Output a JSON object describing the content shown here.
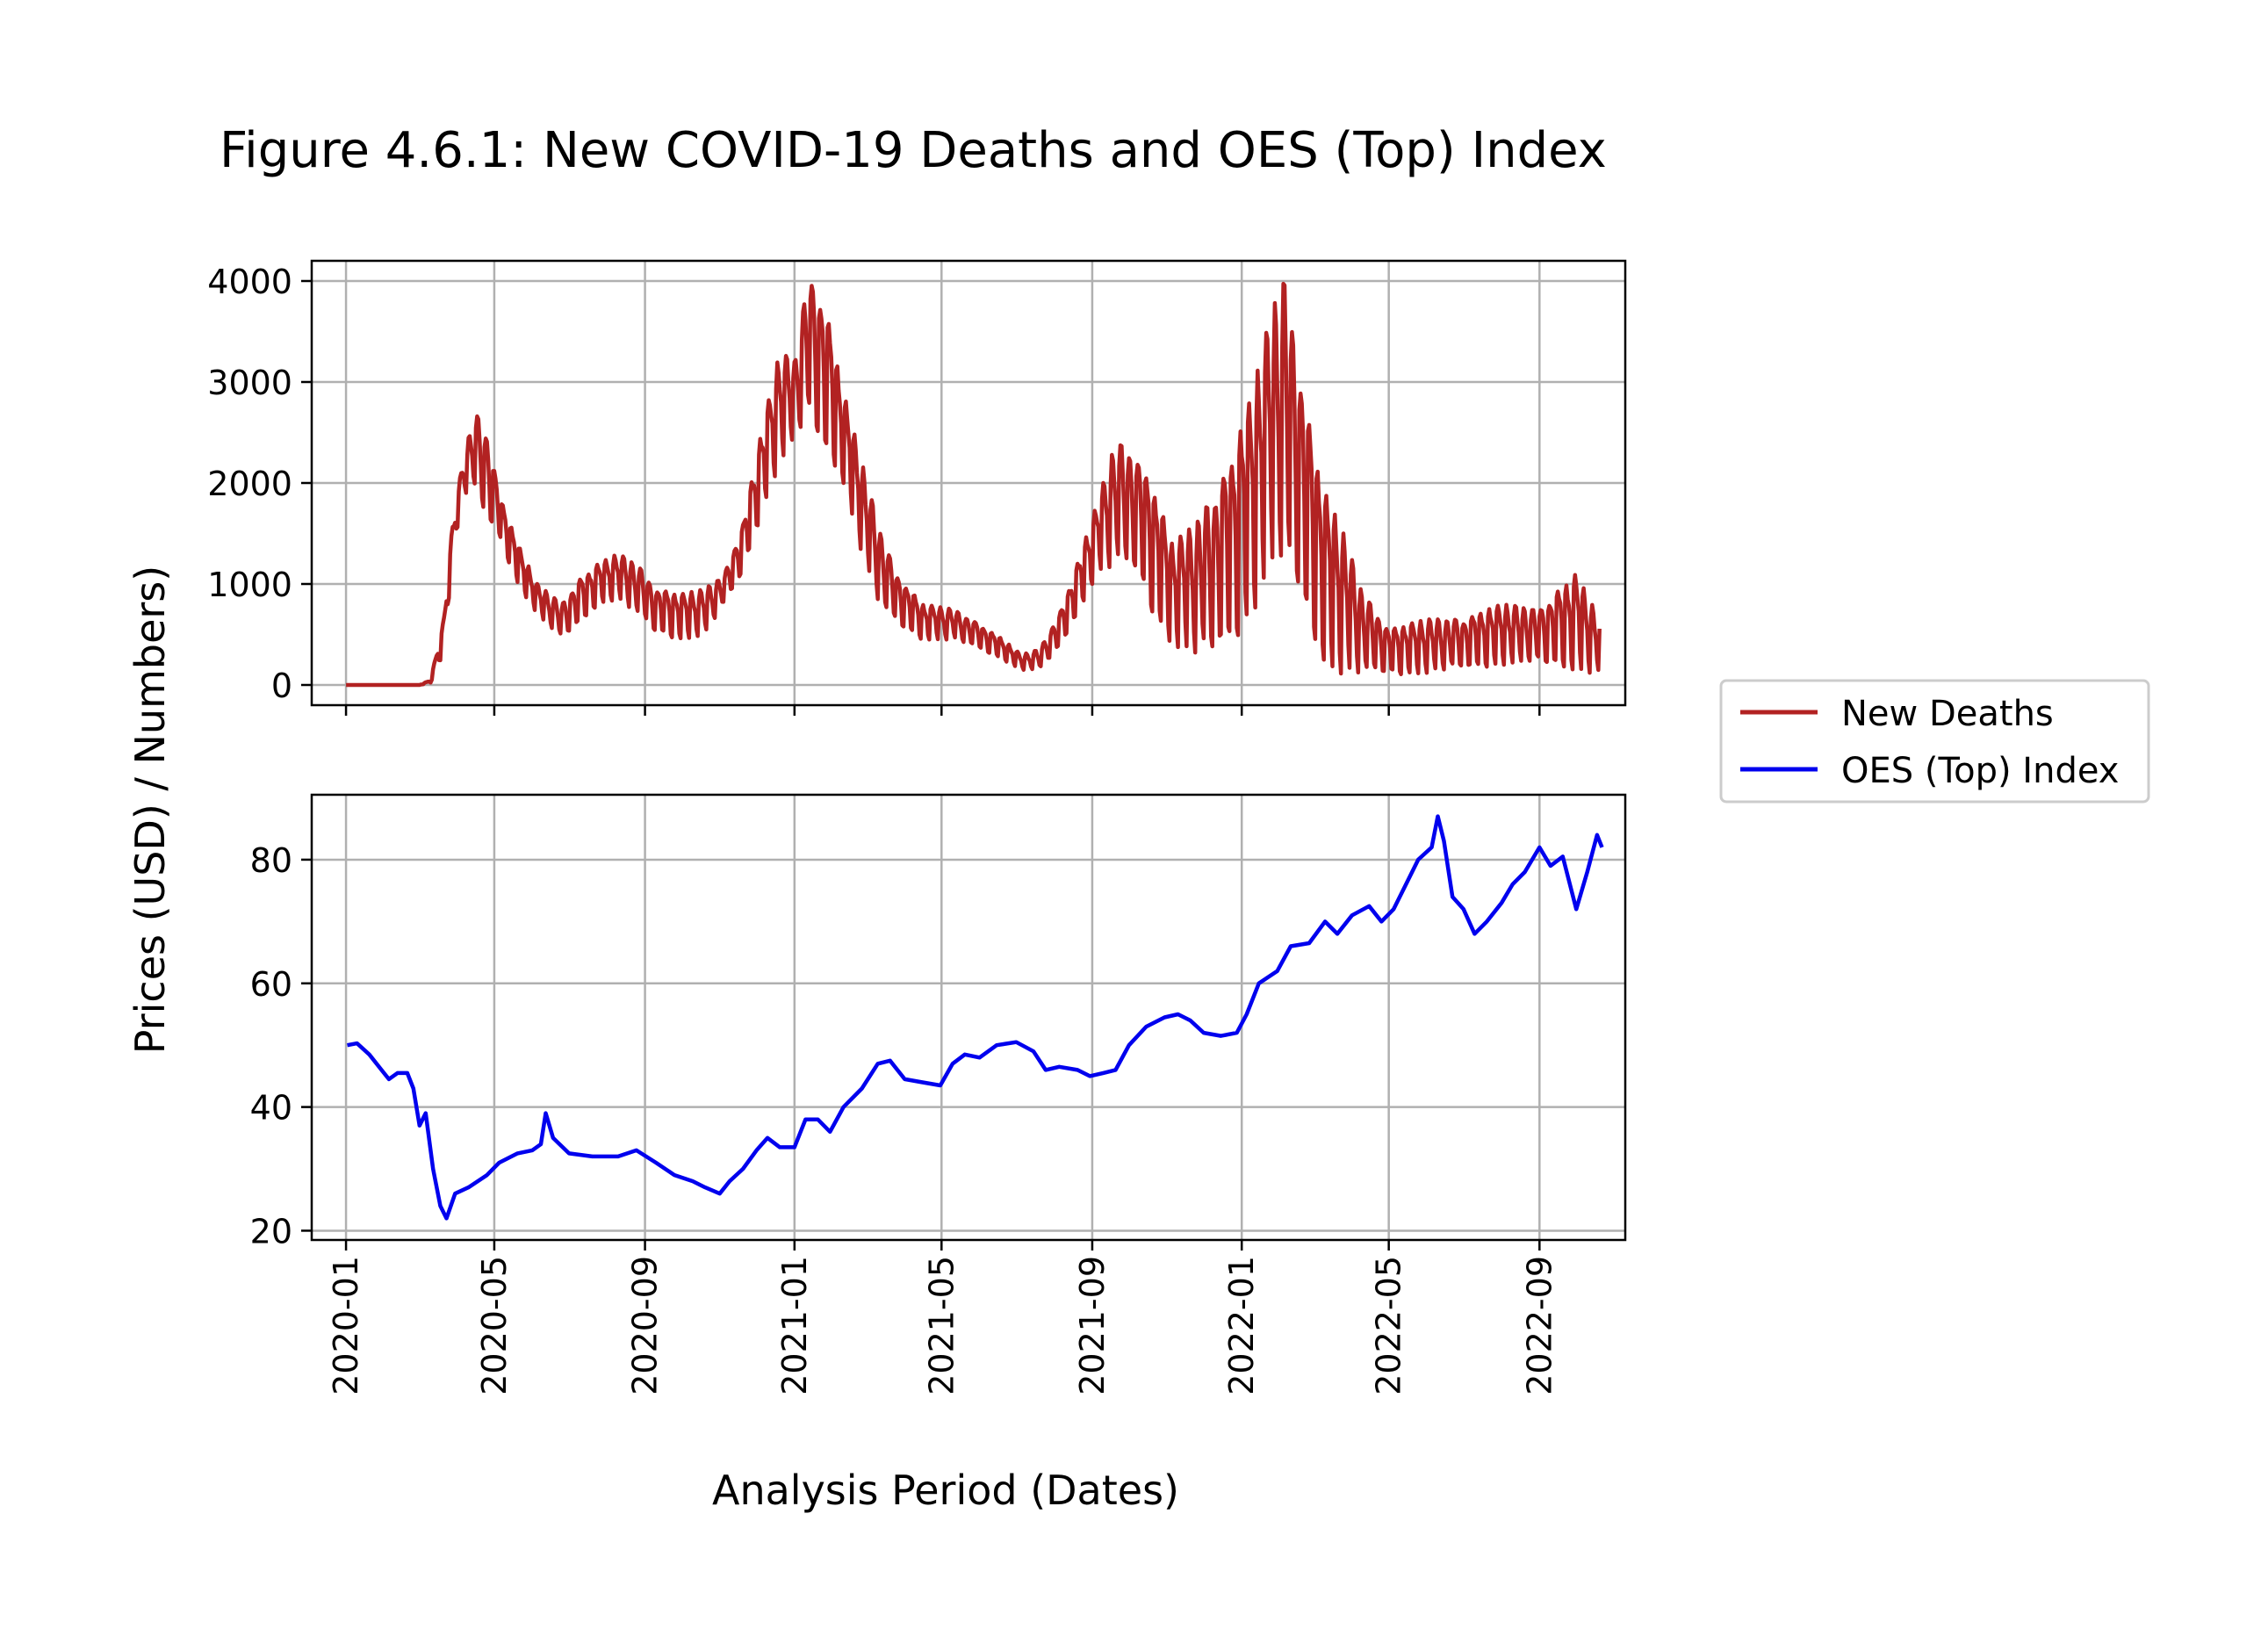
{
  "chart_data": {
    "type": "line",
    "title": "Figure 4.6.1: New COVID-19 Deaths and OES (Top) Index",
    "xlabel": "Analysis Period (Dates)",
    "ylabel": "Prices (USD) / Numbers)",
    "x_ticks": [
      "2020-01",
      "2020-05",
      "2020-09",
      "2021-01",
      "2021-05",
      "2021-09",
      "2022-01",
      "2022-05",
      "2022-09"
    ],
    "x_range": [
      "2019-12-04",
      "2022-11-10"
    ],
    "grid": true,
    "legend_position": "right",
    "legend": [
      "New Deaths",
      "OES (Top) Index"
    ],
    "panels": [
      {
        "name": "New Deaths",
        "color": "#b22222",
        "ylim": [
          -200,
          4200
        ],
        "y_ticks": [
          0,
          1000,
          2000,
          3000,
          4000
        ],
        "series_start": "2020-01-01",
        "series_end": "2022-10-20",
        "weekly_oscillation": true,
        "envelope": [
          [
            "2020-01-01",
            0,
            0
          ],
          [
            "2020-03-01",
            0,
            0
          ],
          [
            "2020-03-10",
            20,
            50
          ],
          [
            "2020-03-20",
            300,
            600
          ],
          [
            "2020-03-28",
            1200,
            1600
          ],
          [
            "2020-04-05",
            1900,
            2200
          ],
          [
            "2020-04-15",
            1900,
            2700
          ],
          [
            "2020-04-25",
            1600,
            2500
          ],
          [
            "2020-05-05",
            1450,
            1900
          ],
          [
            "2020-05-20",
            1000,
            1400
          ],
          [
            "2020-06-05",
            700,
            1000
          ],
          [
            "2020-06-25",
            450,
            800
          ],
          [
            "2020-07-10",
            600,
            1050
          ],
          [
            "2020-07-25",
            800,
            1200
          ],
          [
            "2020-08-10",
            850,
            1300
          ],
          [
            "2020-08-25",
            700,
            1200
          ],
          [
            "2020-09-10",
            500,
            950
          ],
          [
            "2020-10-01",
            450,
            900
          ],
          [
            "2020-10-20",
            500,
            950
          ],
          [
            "2020-11-05",
            800,
            1100
          ],
          [
            "2020-11-20",
            1100,
            1600
          ],
          [
            "2020-12-05",
            1700,
            2500
          ],
          [
            "2020-12-20",
            2200,
            3300
          ],
          [
            "2021-01-01",
            2400,
            3200
          ],
          [
            "2021-01-12",
            2600,
            4050
          ],
          [
            "2021-01-25",
            2300,
            3800
          ],
          [
            "2021-02-10",
            2000,
            2900
          ],
          [
            "2021-02-25",
            1300,
            2200
          ],
          [
            "2021-03-10",
            800,
            1600
          ],
          [
            "2021-03-25",
            600,
            1100
          ],
          [
            "2021-04-15",
            450,
            800
          ],
          [
            "2021-05-10",
            450,
            750
          ],
          [
            "2021-06-01",
            350,
            600
          ],
          [
            "2021-06-20",
            250,
            450
          ],
          [
            "2021-07-05",
            150,
            300
          ],
          [
            "2021-07-20",
            150,
            350
          ],
          [
            "2021-08-05",
            350,
            700
          ],
          [
            "2021-08-20",
            700,
            1200
          ],
          [
            "2021-09-05",
            1100,
            1800
          ],
          [
            "2021-09-20",
            1200,
            2400
          ],
          [
            "2021-10-05",
            1100,
            2300
          ],
          [
            "2021-10-20",
            700,
            2000
          ],
          [
            "2021-11-05",
            400,
            1400
          ],
          [
            "2021-11-25",
            300,
            1600
          ],
          [
            "2021-12-10",
            250,
            1900
          ],
          [
            "2021-12-25",
            400,
            2300
          ],
          [
            "2022-01-10",
            700,
            2900
          ],
          [
            "2022-01-25",
            1200,
            3700
          ],
          [
            "2022-02-05",
            1100,
            4000
          ],
          [
            "2022-02-15",
            900,
            3300
          ],
          [
            "2022-02-25",
            500,
            2600
          ],
          [
            "2022-03-10",
            200,
            1900
          ],
          [
            "2022-03-25",
            100,
            1500
          ],
          [
            "2022-04-10",
            100,
            900
          ],
          [
            "2022-05-01",
            100,
            550
          ],
          [
            "2022-06-01",
            120,
            650
          ],
          [
            "2022-07-01",
            150,
            650
          ],
          [
            "2022-08-01",
            200,
            800
          ],
          [
            "2022-09-01",
            200,
            750
          ],
          [
            "2022-10-01",
            150,
            1100
          ],
          [
            "2022-10-20",
            100,
            650
          ]
        ]
      },
      {
        "name": "OES (Top) Index",
        "color": "#0000ee",
        "ylim": [
          18.5,
          90.5
        ],
        "y_ticks": [
          20,
          40,
          60,
          80
        ],
        "points": [
          [
            "2020-01-02",
            50
          ],
          [
            "2020-01-10",
            50.3
          ],
          [
            "2020-01-20",
            48.5
          ],
          [
            "2020-01-30",
            46
          ],
          [
            "2020-02-05",
            44.5
          ],
          [
            "2020-02-12",
            45.5
          ],
          [
            "2020-02-20",
            45.5
          ],
          [
            "2020-02-25",
            43
          ],
          [
            "2020-03-01",
            37
          ],
          [
            "2020-03-06",
            39
          ],
          [
            "2020-03-12",
            30
          ],
          [
            "2020-03-18",
            24
          ],
          [
            "2020-03-23",
            22
          ],
          [
            "2020-03-30",
            26
          ],
          [
            "2020-04-10",
            27
          ],
          [
            "2020-04-25",
            29
          ],
          [
            "2020-05-05",
            31
          ],
          [
            "2020-05-20",
            32.5
          ],
          [
            "2020-06-01",
            33
          ],
          [
            "2020-06-08",
            34
          ],
          [
            "2020-06-12",
            39
          ],
          [
            "2020-06-18",
            35
          ],
          [
            "2020-07-01",
            32.5
          ],
          [
            "2020-07-20",
            32
          ],
          [
            "2020-08-10",
            32
          ],
          [
            "2020-08-25",
            33
          ],
          [
            "2020-09-10",
            31
          ],
          [
            "2020-09-25",
            29
          ],
          [
            "2020-10-10",
            28
          ],
          [
            "2020-10-20",
            27
          ],
          [
            "2020-11-01",
            26
          ],
          [
            "2020-11-09",
            28
          ],
          [
            "2020-11-20",
            30
          ],
          [
            "2020-12-01",
            33
          ],
          [
            "2020-12-10",
            35
          ],
          [
            "2020-12-20",
            33.5
          ],
          [
            "2021-01-01",
            33.5
          ],
          [
            "2021-01-10",
            38
          ],
          [
            "2021-01-20",
            38
          ],
          [
            "2021-01-30",
            36
          ],
          [
            "2021-02-10",
            40
          ],
          [
            "2021-02-25",
            43
          ],
          [
            "2021-03-10",
            47
          ],
          [
            "2021-03-20",
            47.5
          ],
          [
            "2021-04-01",
            44.5
          ],
          [
            "2021-04-15",
            44
          ],
          [
            "2021-04-30",
            43.5
          ],
          [
            "2021-05-10",
            47
          ],
          [
            "2021-05-20",
            48.5
          ],
          [
            "2021-06-01",
            48
          ],
          [
            "2021-06-15",
            50
          ],
          [
            "2021-07-01",
            50.5
          ],
          [
            "2021-07-15",
            49
          ],
          [
            "2021-07-25",
            46
          ],
          [
            "2021-08-05",
            46.5
          ],
          [
            "2021-08-20",
            46
          ],
          [
            "2021-08-30",
            45
          ],
          [
            "2021-09-10",
            45.5
          ],
          [
            "2021-09-20",
            46
          ],
          [
            "2021-10-01",
            50
          ],
          [
            "2021-10-15",
            53
          ],
          [
            "2021-10-30",
            54.5
          ],
          [
            "2021-11-10",
            55
          ],
          [
            "2021-11-20",
            54
          ],
          [
            "2021-12-01",
            52
          ],
          [
            "2021-12-15",
            51.5
          ],
          [
            "2021-12-28",
            52
          ],
          [
            "2022-01-05",
            55
          ],
          [
            "2022-01-15",
            60
          ],
          [
            "2022-01-30",
            62
          ],
          [
            "2022-02-10",
            66
          ],
          [
            "2022-02-25",
            66.5
          ],
          [
            "2022-03-10",
            70
          ],
          [
            "2022-03-20",
            68
          ],
          [
            "2022-04-01",
            71
          ],
          [
            "2022-04-15",
            72.5
          ],
          [
            "2022-04-25",
            70
          ],
          [
            "2022-05-05",
            72
          ],
          [
            "2022-05-15",
            76
          ],
          [
            "2022-05-25",
            80
          ],
          [
            "2022-06-05",
            82
          ],
          [
            "2022-06-10",
            87
          ],
          [
            "2022-06-15",
            83
          ],
          [
            "2022-06-22",
            74
          ],
          [
            "2022-07-01",
            72
          ],
          [
            "2022-07-10",
            68
          ],
          [
            "2022-07-20",
            70
          ],
          [
            "2022-08-01",
            73
          ],
          [
            "2022-08-10",
            76
          ],
          [
            "2022-08-20",
            78
          ],
          [
            "2022-09-01",
            82
          ],
          [
            "2022-09-10",
            79
          ],
          [
            "2022-09-20",
            80.5
          ],
          [
            "2022-10-01",
            72
          ],
          [
            "2022-10-10",
            78
          ],
          [
            "2022-10-18",
            84
          ],
          [
            "2022-10-22",
            82
          ]
        ]
      }
    ]
  }
}
